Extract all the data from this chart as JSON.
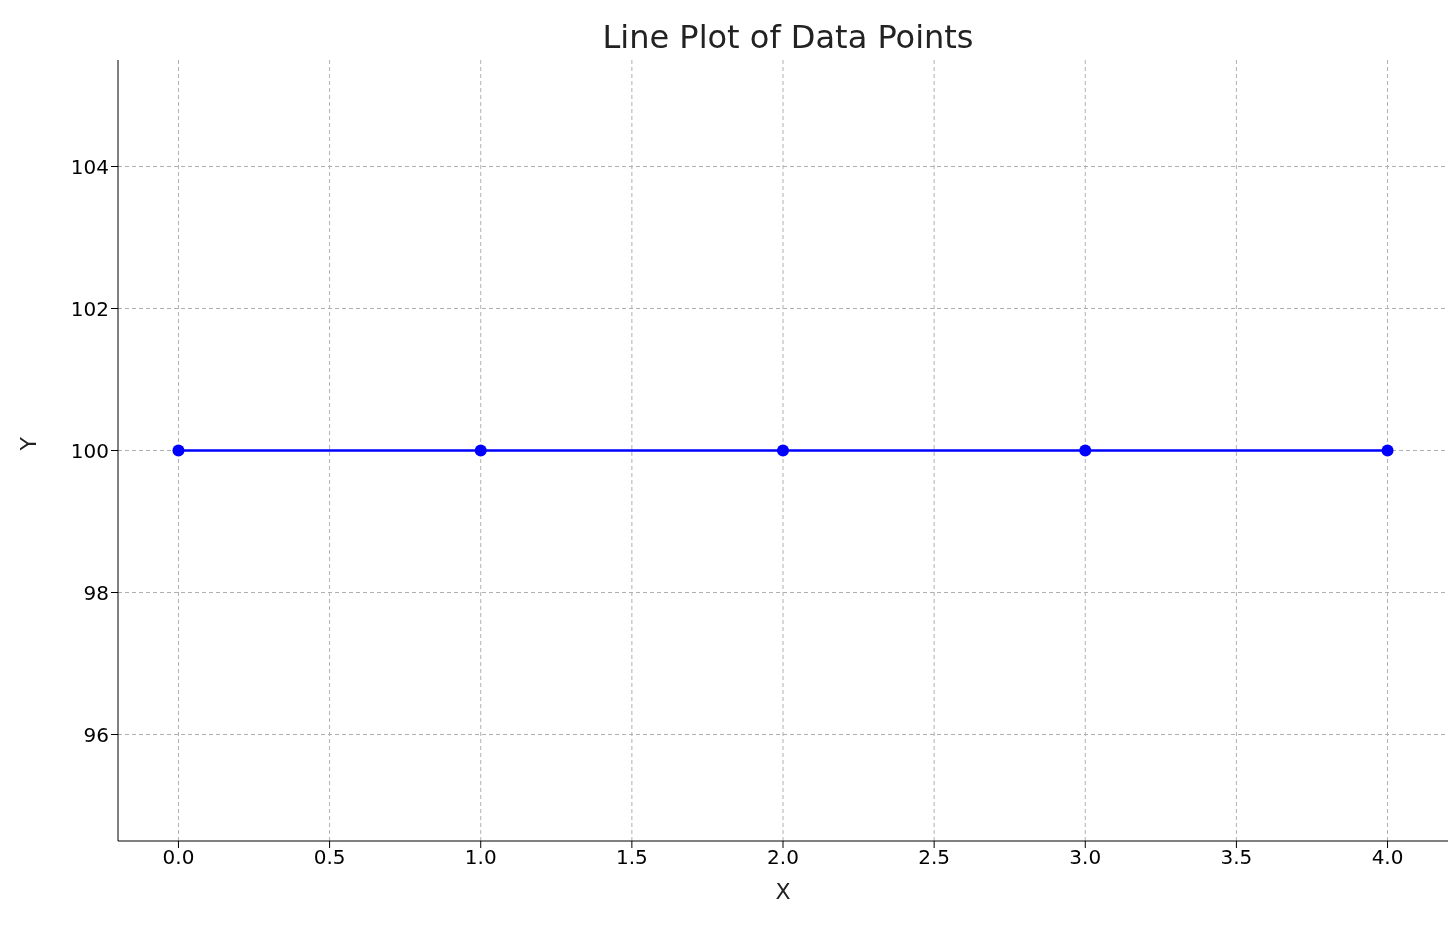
{
  "chart_data": {
    "type": "line",
    "title": "Line Plot of Data Points",
    "xlabel": "X",
    "ylabel": "Y",
    "x": [
      0,
      1,
      2,
      3,
      4
    ],
    "series": [
      {
        "color": "#0000ff",
        "values": [
          100,
          100,
          100,
          100,
          100
        ]
      }
    ],
    "xlim": [
      -0.2,
      4.2
    ],
    "xticks": [
      {
        "value": 0,
        "label": "0.0"
      },
      {
        "value": 0.5,
        "label": "0.5"
      },
      {
        "value": 1,
        "label": "1.0"
      },
      {
        "value": 1.5,
        "label": "1.5"
      },
      {
        "value": 2,
        "label": "2.0"
      },
      {
        "value": 2.5,
        "label": "2.5"
      },
      {
        "value": 3,
        "label": "3.0"
      },
      {
        "value": 3.5,
        "label": "3.5"
      },
      {
        "value": 4,
        "label": "4.0"
      }
    ],
    "ylim": [
      94.5,
      105.5
    ],
    "yticks": [
      96,
      98,
      100,
      102,
      104
    ],
    "grid": true,
    "marker": "circle",
    "line_style": "solid"
  }
}
